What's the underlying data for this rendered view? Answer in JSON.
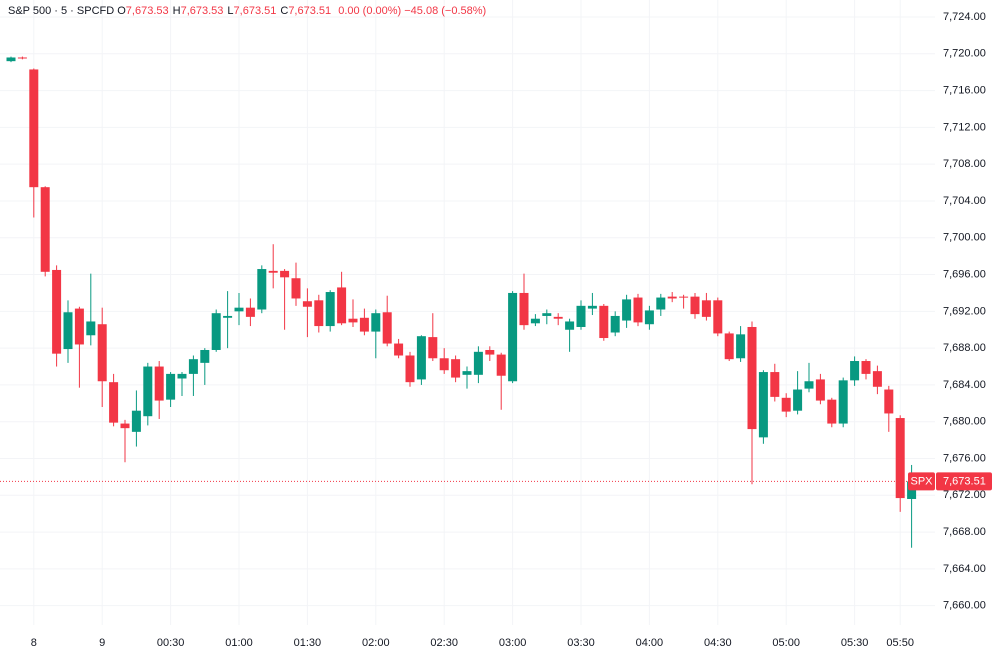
{
  "chart_data": {
    "type": "candlestick",
    "title": "S&P 500 · 5 · SPCFD",
    "ohlc_legend": [
      {
        "key": "O",
        "text": "7,673.53"
      },
      {
        "key": "H",
        "text": "7,673.53"
      },
      {
        "key": "L",
        "text": "7,673.51"
      },
      {
        "key": "C",
        "text": "7,673.51"
      }
    ],
    "change": "0.00 (0.00%)",
    "change_total": "−45.08 (−0.58%)",
    "up_color": "#089981",
    "down_color": "#f23645",
    "grid": true,
    "categories": [
      null,
      null,
      "8",
      null,
      null,
      null,
      null,
      null,
      "9",
      null,
      null,
      null,
      null,
      null,
      "00:30",
      null,
      null,
      null,
      null,
      null,
      "01:00",
      null,
      null,
      null,
      null,
      null,
      "01:30",
      null,
      null,
      null,
      null,
      null,
      "02:00",
      null,
      null,
      null,
      null,
      null,
      "02:30",
      null,
      null,
      null,
      null,
      null,
      "03:00",
      null,
      null,
      null,
      null,
      null,
      "03:30",
      null,
      null,
      null,
      null,
      null,
      "04:00",
      null,
      null,
      null,
      null,
      null,
      "04:30",
      null,
      null,
      null,
      null,
      null,
      "05:00",
      null,
      null,
      null,
      null,
      null,
      "05:30",
      null,
      null,
      null,
      "05:50",
      null
    ],
    "open": [
      7719.2,
      7719.6,
      7718.3,
      7705.5,
      7696.5,
      7687.9,
      7692.3,
      7689.4,
      7690.6,
      7684.3,
      7679.8,
      7678.9,
      7680.6,
      7686.0,
      7682.4,
      7684.7,
      7685.2,
      7686.4,
      7687.8,
      7691.3,
      7692.0,
      7692.4,
      7692.2,
      7696.4,
      7696.4,
      7695.6,
      7693.1,
      7693.2,
      7690.4,
      7694.6,
      7691.2,
      7691.3,
      7689.8,
      7691.9,
      7688.5,
      7687.2,
      7684.6,
      7689.2,
      7686.9,
      7686.8,
      7685.1,
      7685.1,
      7687.8,
      7687.3,
      7684.4,
      7694.0,
      7690.7,
      7691.5,
      7691.4,
      7690.0,
      7690.3,
      7692.3,
      7692.6,
      7689.7,
      7691.0,
      7693.5,
      7690.6,
      7692.2,
      7693.6,
      7693.6,
      7693.6,
      7693.2,
      7693.2,
      7689.6,
      7686.9,
      7690.3,
      7678.3,
      7685.4,
      7682.6,
      7681.2,
      7683.6,
      7684.6,
      7682.4,
      7679.8,
      7684.5,
      7686.6,
      7685.5,
      7683.5,
      7680.4,
      7671.6
    ],
    "high": [
      7719.7,
      7719.7,
      7718.4,
      7705.6,
      7697.0,
      7693.2,
      7692.5,
      7696.1,
      7692.4,
      7685.2,
      7680.2,
      7683.4,
      7686.4,
      7686.6,
      7685.4,
      7685.4,
      7687.2,
      7688.0,
      7692.2,
      7694.2,
      7694.0,
      7693.4,
      7697.0,
      7699.3,
      7696.6,
      7697.3,
      7694.5,
      7693.8,
      7694.3,
      7696.3,
      7693.3,
      7692.3,
      7692.2,
      7693.7,
      7689.0,
      7687.6,
      7689.4,
      7691.8,
      7688.0,
      7687.2,
      7686.0,
      7688.2,
      7688.2,
      7687.5,
      7694.2,
      7696.1,
      7691.7,
      7692.2,
      7691.8,
      7691.2,
      7693.2,
      7694.0,
      7692.8,
      7692.0,
      7693.8,
      7693.9,
      7692.6,
      7693.9,
      7694.1,
      7693.8,
      7694.0,
      7694.0,
      7693.5,
      7689.8,
      7690.4,
      7690.9,
      7685.6,
      7686.3,
      7683.1,
      7685.5,
      7686.4,
      7685.2,
      7682.6,
      7684.8,
      7687.1,
      7686.8,
      7686.1,
      7683.9,
      7680.7,
      7675.3
    ],
    "low": [
      7719.1,
      7719.4,
      7702.2,
      7695.8,
      7686.0,
      7686.4,
      7683.7,
      7688.3,
      7681.6,
      7679.5,
      7675.6,
      7677.3,
      7679.6,
      7680.3,
      7681.6,
      7682.8,
      7682.8,
      7684.0,
      7687.6,
      7688.0,
      7690.5,
      7690.4,
      7691.8,
      7694.5,
      7690.0,
      7692.6,
      7689.2,
      7689.7,
      7689.8,
      7690.5,
      7690.3,
      7689.4,
      7686.9,
      7688.2,
      7686.9,
      7683.8,
      7684.0,
      7686.6,
      7685.2,
      7684.3,
      7683.6,
      7684.2,
      7686.6,
      7681.3,
      7684.2,
      7690.0,
      7690.4,
      7690.6,
      7690.5,
      7687.6,
      7690.0,
      7691.6,
      7688.8,
      7689.3,
      7690.2,
      7690.4,
      7690.0,
      7691.5,
      7693.0,
      7692.3,
      7691.2,
      7691.0,
      7689.3,
      7686.6,
      7686.5,
      7673.2,
      7677.6,
      7682.2,
      7680.5,
      7680.8,
      7683.2,
      7681.9,
      7679.4,
      7679.4,
      7683.9,
      7684.6,
      7683.0,
      7678.9,
      7670.2,
      7666.3
    ],
    "close": [
      7719.6,
      7719.5,
      7705.5,
      7696.3,
      7687.4,
      7691.9,
      7688.4,
      7690.9,
      7684.4,
      7679.9,
      7679.3,
      7681.2,
      7686.0,
      7682.3,
      7685.2,
      7685.2,
      7686.8,
      7687.8,
      7691.8,
      7691.5,
      7692.4,
      7691.4,
      7696.6,
      7696.2,
      7695.7,
      7693.4,
      7692.5,
      7690.4,
      7694.1,
      7690.7,
      7690.8,
      7689.8,
      7691.8,
      7688.5,
      7687.2,
      7684.3,
      7689.3,
      7686.9,
      7685.6,
      7684.8,
      7685.5,
      7687.6,
      7687.3,
      7685.0,
      7694.0,
      7690.5,
      7691.2,
      7691.8,
      7691.2,
      7690.9,
      7692.6,
      7692.6,
      7689.1,
      7691.5,
      7693.3,
      7690.8,
      7692.1,
      7693.5,
      7693.4,
      7693.5,
      7691.7,
      7691.4,
      7689.6,
      7686.8,
      7689.5,
      7679.2,
      7685.4,
      7682.7,
      7681.1,
      7683.5,
      7684.4,
      7682.3,
      7679.8,
      7684.5,
      7686.6,
      7685.2,
      7683.8,
      7680.9,
      7671.7,
      7673.51
    ],
    "ylim": [
      7657.9,
      7725.85
    ],
    "yticks": [
      {
        "value": 7660,
        "label": "7,660.00"
      },
      {
        "value": 7664,
        "label": "7,664.00"
      },
      {
        "value": 7668,
        "label": "7,668.00"
      },
      {
        "value": 7672,
        "label": "7,672.00"
      },
      {
        "value": 7676,
        "label": "7,676.00"
      },
      {
        "value": 7680,
        "label": "7,680.00"
      },
      {
        "value": 7684,
        "label": "7,684.00"
      },
      {
        "value": 7688,
        "label": "7,688.00"
      },
      {
        "value": 7692,
        "label": "7,692.00"
      },
      {
        "value": 7696,
        "label": "7,696.00"
      },
      {
        "value": 7700,
        "label": "7,700.00"
      },
      {
        "value": 7704,
        "label": "7,704.00"
      },
      {
        "value": 7708,
        "label": "7,708.00"
      },
      {
        "value": 7712,
        "label": "7,712.00"
      },
      {
        "value": 7716,
        "label": "7,716.00"
      },
      {
        "value": 7720,
        "label": "7,720.00"
      },
      {
        "value": 7724,
        "label": "7,724.00"
      }
    ],
    "last_price": {
      "value": 7673.51,
      "label": "7,673.51"
    },
    "last_price_symbol": "SPX"
  }
}
